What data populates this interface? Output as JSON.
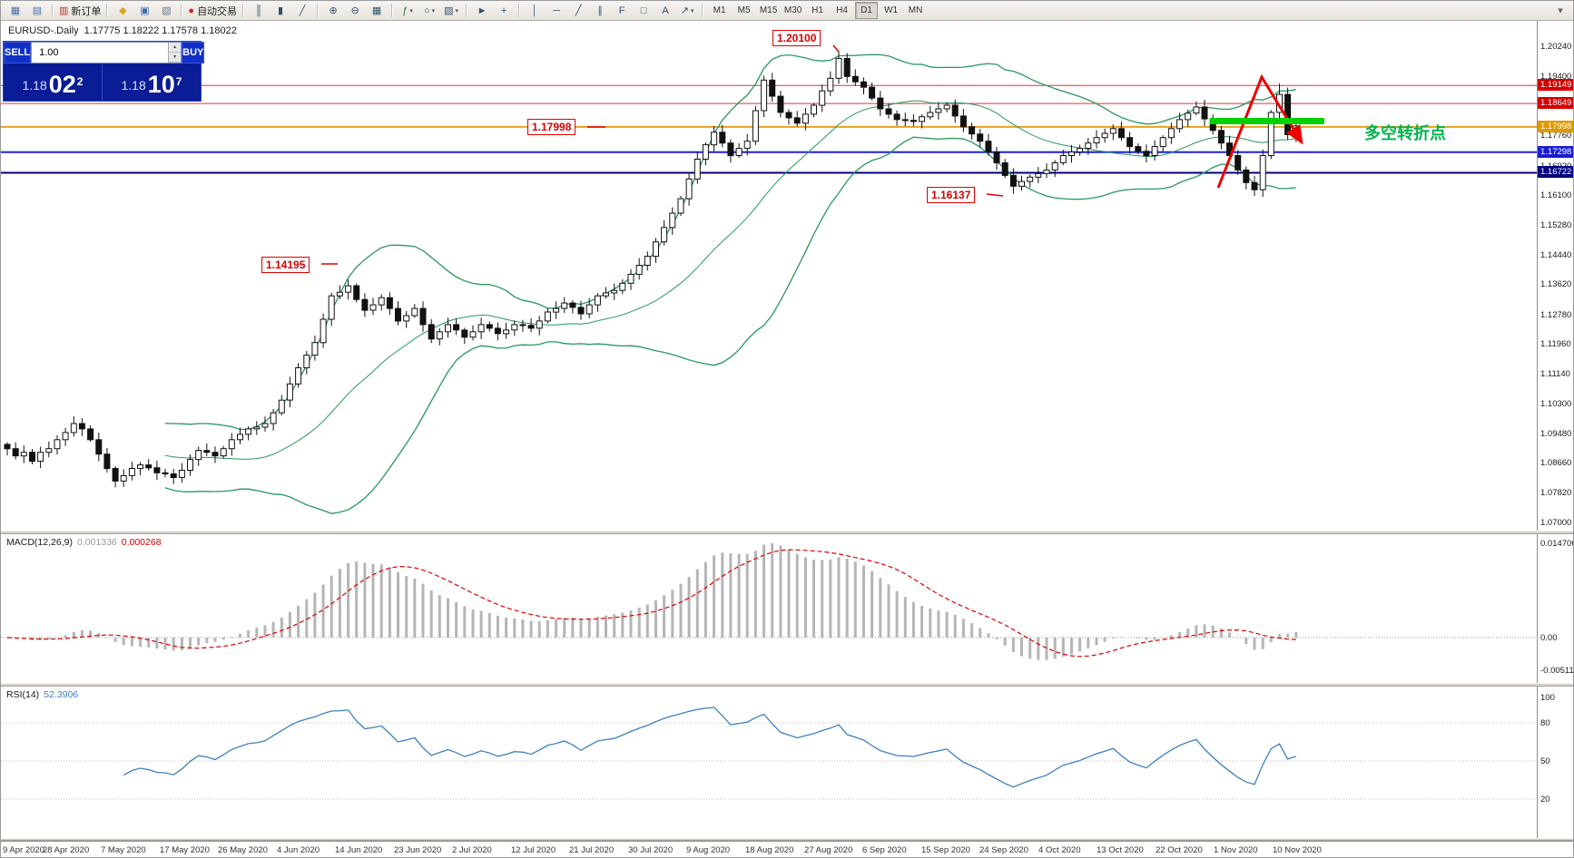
{
  "toolbar": {
    "buttons": [
      {
        "name": "new-chart",
        "glyph": "▦",
        "color": "#4a6fa5"
      },
      {
        "name": "chart-profiles",
        "glyph": "▤",
        "color": "#4a6fa5"
      },
      {
        "sep": true
      },
      {
        "name": "new-order",
        "glyph": "▥",
        "color": "#b0342e",
        "label": "新订单"
      },
      {
        "sep": true
      },
      {
        "name": "metaeditor",
        "glyph": "◆",
        "color": "#dca41e"
      },
      {
        "name": "market-watch",
        "glyph": "▣",
        "color": "#3a6fb0"
      },
      {
        "name": "terminal",
        "glyph": "▧",
        "color": "#6a7a8a"
      },
      {
        "sep": true
      },
      {
        "name": "auto-trading",
        "glyph": "●",
        "color": "#cf2626",
        "label": "自动交易"
      },
      {
        "sep": true
      },
      {
        "name": "bar-chart",
        "glyph": "║",
        "color": "#33536e"
      },
      {
        "name": "candlestick-chart",
        "glyph": "▮",
        "color": "#33536e"
      },
      {
        "name": "line-chart",
        "glyph": "╱",
        "color": "#33536e"
      },
      {
        "sep": true
      },
      {
        "name": "zoom-in",
        "glyph": "⊕",
        "color": "#33536e"
      },
      {
        "name": "zoom-out",
        "glyph": "⊖",
        "color": "#33536e"
      },
      {
        "name": "tile-windows",
        "glyph": "▦",
        "color": "#33536e"
      },
      {
        "sep": true
      },
      {
        "name": "indicators",
        "glyph": "ƒ",
        "color": "#2e7d32",
        "caret": true
      },
      {
        "name": "periods",
        "glyph": "○",
        "color": "#33536e",
        "caret": true
      },
      {
        "name": "templates",
        "glyph": "▨",
        "color": "#33536e",
        "caret": true
      },
      {
        "sep": true
      },
      {
        "name": "cursor",
        "glyph": "►",
        "color": "#33536e"
      },
      {
        "name": "crosshair",
        "glyph": "+",
        "color": "#33536e"
      },
      {
        "sep": true
      },
      {
        "name": "vertical-line",
        "glyph": "│",
        "color": "#33536e"
      },
      {
        "name": "horizontal-line",
        "glyph": "─",
        "color": "#33536e"
      },
      {
        "name": "trendline",
        "glyph": "╱",
        "color": "#33536e"
      },
      {
        "name": "equidistant-channel",
        "glyph": "∥",
        "color": "#33536e"
      },
      {
        "name": "fibonacci",
        "glyph": "F",
        "color": "#33536e"
      },
      {
        "name": "shapes",
        "glyph": "□",
        "color": "#33536e"
      },
      {
        "name": "text-label",
        "glyph": "A",
        "color": "#33536e"
      },
      {
        "name": "arrows",
        "glyph": "↗",
        "color": "#33536e",
        "caret": true
      },
      {
        "sep": true
      }
    ],
    "timeframes": [
      "M1",
      "M5",
      "M15",
      "M30",
      "H1",
      "H4",
      "D1",
      "W1",
      "MN"
    ],
    "active_timeframe": "D1",
    "icons": {
      "spin_up": "▴",
      "spin_down": "▾",
      "overflow": "▾",
      "caret": "▾"
    }
  },
  "chart_header": {
    "title": "EURUSD-.Daily",
    "ohlc": "1.17775 1.18222 1.17578 1.18022"
  },
  "trade_panel": {
    "sell_label": "SELL",
    "buy_label": "BUY",
    "volume": "1.00",
    "sell_price_big": "1.18",
    "sell_price_pips": "02",
    "sell_price_sup": "2",
    "buy_price_big": "1.18",
    "buy_price_pips": "10",
    "buy_price_sup": "7"
  },
  "annotations": {
    "high_flag": "1.20100",
    "level_flag": "1.17998",
    "low_flag": "1.16137",
    "swing_flag": "1.14195",
    "note": "多空转折点",
    "note_color": "#00b34d",
    "highlight_color": "#00d200",
    "arrow_color": "#ee0000"
  },
  "price_axis": {
    "labels": [
      {
        "text": "1.20240",
        "p": 1.2024
      },
      {
        "text": "1.19400",
        "p": 1.194
      },
      {
        "text": "1.17760",
        "p": 1.1776
      },
      {
        "text": "1.16920",
        "p": 1.1692
      },
      {
        "text": "1.16100",
        "p": 1.161
      },
      {
        "text": "1.15280",
        "p": 1.1528
      },
      {
        "text": "1.14440",
        "p": 1.1444
      },
      {
        "text": "1.13620",
        "p": 1.1362
      },
      {
        "text": "1.12780",
        "p": 1.1278
      },
      {
        "text": "1.11960",
        "p": 1.1196
      },
      {
        "text": "1.11140",
        "p": 1.1114
      },
      {
        "text": "1.10300",
        "p": 1.103
      },
      {
        "text": "1.09480",
        "p": 1.0948
      },
      {
        "text": "1.08660",
        "p": 1.0866
      },
      {
        "text": "1.07820",
        "p": 1.0782
      },
      {
        "text": "1.07000",
        "p": 1.07
      }
    ],
    "badges": [
      {
        "text": "1.19149",
        "p": 1.19149,
        "bg": "#d40000"
      },
      {
        "text": "1.18649",
        "p": 1.18649,
        "bg": "#d40000"
      },
      {
        "text": "1.17998",
        "p": 1.17998,
        "bg": "#e09a00"
      },
      {
        "text": "1.17298",
        "p": 1.17298,
        "bg": "#1c1cd4"
      },
      {
        "text": "1.16722",
        "p": 1.16722,
        "bg": "#000080"
      }
    ]
  },
  "macd": {
    "title": "MACD(12,26,9)",
    "value1": "0.001336",
    "value2": "0.000268",
    "axis": [
      {
        "text": "0.014706",
        "v": 0.014706
      },
      {
        "text": "0.00",
        "v": 0
      },
      {
        "text": "-0.005113",
        "v": -0.005113
      }
    ],
    "range": [
      -0.005113,
      0.014706
    ]
  },
  "rsi": {
    "title": "RSI(14)",
    "value": "52.3906",
    "axis": [
      {
        "text": "100",
        "v": 100
      },
      {
        "text": "80",
        "v": 80
      },
      {
        "text": "50",
        "v": 50
      },
      {
        "text": "20",
        "v": 20
      }
    ],
    "levels": [
      80,
      50,
      20
    ]
  },
  "dates": [
    "9 Apr 2020",
    "28 Apr 2020",
    "7 May 2020",
    "17 May 2020",
    "26 May 2020",
    "4 Jun 2020",
    "14 Jun 2020",
    "23 Jun 2020",
    "2 Jul 2020",
    "12 Jul 2020",
    "21 Jul 2020",
    "30 Jul 2020",
    "9 Aug 2020",
    "18 Aug 2020",
    "27 Aug 2020",
    "6 Sep 2020",
    "15 Sep 2020",
    "24 Sep 2020",
    "4 Oct 2020",
    "13 Oct 2020",
    "22 Oct 2020",
    "1 Nov 2020",
    "10 Nov 2020"
  ],
  "chart_data": {
    "type": "candlestick",
    "symbol": "EURUSD",
    "timeframe": "Daily",
    "price_range": [
      1.07,
      1.2024
    ],
    "indicators": [
      "Bollinger Bands (20,2)",
      "MACD(12,26,9)",
      "RSI(14)"
    ],
    "levels": [
      {
        "p": 1.19149,
        "color": "#e03535",
        "w": 1
      },
      {
        "p": 1.18649,
        "color": "#e03535",
        "w": 1
      },
      {
        "p": 1.17998,
        "color": "#e8a020",
        "w": 2
      },
      {
        "p": 1.17298,
        "color": "#2020dd",
        "w": 2
      },
      {
        "p": 1.16722,
        "color": "#000080",
        "w": 2
      }
    ],
    "closes": [
      1.0905,
      1.0885,
      1.0895,
      1.087,
      1.0895,
      1.0905,
      1.093,
      1.095,
      1.0975,
      1.096,
      1.093,
      1.089,
      1.085,
      1.0815,
      1.083,
      1.085,
      1.086,
      1.0852,
      1.0838,
      1.0835,
      1.0825,
      1.0845,
      1.0875,
      1.09,
      1.0895,
      1.0885,
      1.0905,
      1.093,
      1.0945,
      1.096,
      1.0965,
      1.0975,
      1.1005,
      1.104,
      1.1085,
      1.113,
      1.1165,
      1.12,
      1.1265,
      1.133,
      1.134,
      1.1358,
      1.132,
      1.129,
      1.1305,
      1.1325,
      1.1295,
      1.126,
      1.1275,
      1.1295,
      1.125,
      1.121,
      1.123,
      1.125,
      1.1235,
      1.1215,
      1.123,
      1.125,
      1.124,
      1.1225,
      1.1235,
      1.125,
      1.1248,
      1.124,
      1.126,
      1.1285,
      1.1295,
      1.131,
      1.1298,
      1.128,
      1.1305,
      1.133,
      1.1338,
      1.1345,
      1.1365,
      1.139,
      1.1415,
      1.144,
      1.148,
      1.152,
      1.156,
      1.16,
      1.1655,
      1.171,
      1.175,
      1.1785,
      1.1755,
      1.172,
      1.174,
      1.176,
      1.1845,
      1.193,
      1.1885,
      1.184,
      1.1825,
      1.181,
      1.1835,
      1.186,
      1.19,
      1.1935,
      1.199,
      1.194,
      1.1925,
      1.191,
      1.188,
      1.185,
      1.1835,
      1.182,
      1.1818,
      1.1815,
      1.1828,
      1.184,
      1.185,
      1.186,
      1.183,
      1.18,
      1.178,
      1.176,
      1.173,
      1.17,
      1.1665,
      1.1635,
      1.1648,
      1.166,
      1.167,
      1.168,
      1.17,
      1.172,
      1.173,
      1.174,
      1.1755,
      1.177,
      1.1782,
      1.1795,
      1.177,
      1.1745,
      1.1732,
      1.172,
      1.1745,
      1.177,
      1.1795,
      1.182,
      1.1838,
      1.1855,
      1.1822,
      1.179,
      1.1755,
      1.172,
      1.168,
      1.1645,
      1.1625,
      1.172,
      1.184,
      1.189,
      1.1778,
      1.18022
    ],
    "extremes": {
      "100": {
        "h": 1.201
      },
      "121": {
        "l": 1.16137
      },
      "150": {
        "l": 1.1608
      },
      "153": {
        "h": 1.192
      },
      "155": {
        "h": 1.18222,
        "l": 1.17578
      }
    }
  }
}
